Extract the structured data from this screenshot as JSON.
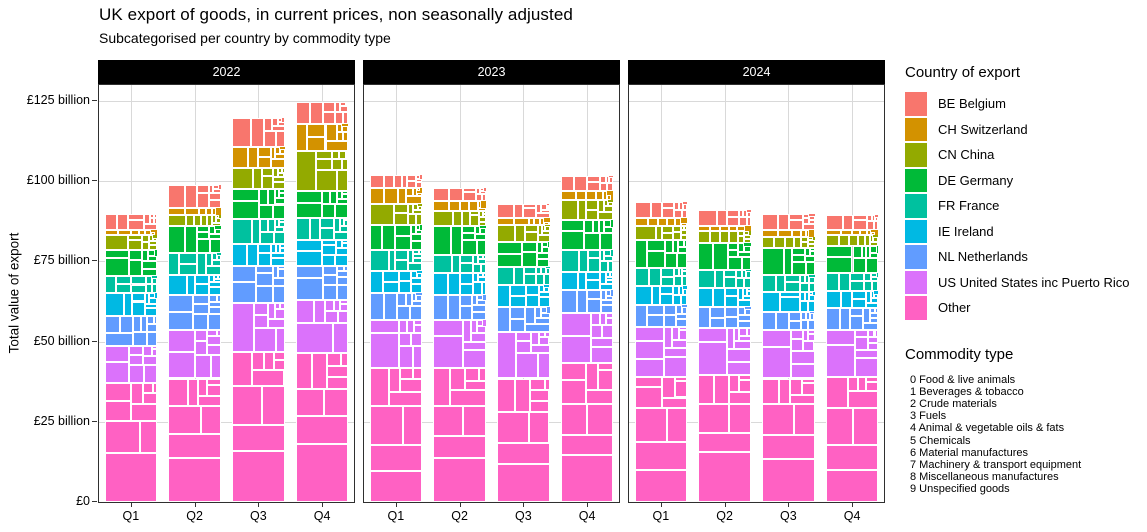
{
  "title": "UK export of goods, in current prices, non seasonally adjusted",
  "subtitle": "Subcategorised per country by commodity type",
  "facets": [
    "2022",
    "2023",
    "2024"
  ],
  "y_axis": {
    "title": "Total value of export",
    "tick_labels": [
      "£0",
      "£25 billion",
      "£50 billion",
      "£75 billion",
      "£100 billion",
      "£125 billion"
    ],
    "tick_values": [
      0,
      25,
      50,
      75,
      100,
      125
    ]
  },
  "x_axis": {
    "labels": [
      "Q1",
      "Q2",
      "Q3",
      "Q4"
    ]
  },
  "legend_country": {
    "title": "Country of export",
    "items": [
      {
        "label": "BE Belgium",
        "color": "#F8766D"
      },
      {
        "label": "CH Switzerland",
        "color": "#D39200"
      },
      {
        "label": "CN China",
        "color": "#93AA00"
      },
      {
        "label": "DE Germany",
        "color": "#00BA38"
      },
      {
        "label": "FR France",
        "color": "#00C19F"
      },
      {
        "label": "IE Ireland",
        "color": "#00B9E3"
      },
      {
        "label": "NL Netherlands",
        "color": "#619CFF"
      },
      {
        "label": "US United States inc Puerto Rico",
        "color": "#DB72FB"
      },
      {
        "label": "Other",
        "color": "#FF61C3"
      }
    ]
  },
  "legend_commodity": {
    "title": "Commodity type",
    "items": [
      "0 Food & live animals",
      "1 Beverages & tobacco",
      "2 Crude materials",
      "3 Fuels",
      "4 Animal & vegetable oils & fats",
      "5 Chemicals",
      "6 Material manufactures",
      "7 Machinery & transport equipment",
      "8 Miscellaneous manufactures",
      "9 Unspecified goods"
    ]
  },
  "chart_data": {
    "type": "bar",
    "stacked": true,
    "mosaic": true,
    "title": "UK export of goods, in current prices, non seasonally adjusted",
    "xlabel": "",
    "ylabel": "Total value of export",
    "ylim": [
      0,
      130
    ],
    "unit": "GBP billion",
    "grid": true,
    "legend_position": "right",
    "categories": [
      "Q1",
      "Q2",
      "Q3",
      "Q4"
    ],
    "stack_order_bottom_to_top": [
      "Other",
      "US United States inc Puerto Rico",
      "NL Netherlands",
      "IE Ireland",
      "FR France",
      "DE Germany",
      "CN China",
      "CH Switzerland",
      "BE Belgium"
    ],
    "facets": [
      {
        "year": "2022",
        "series": [
          {
            "name": "BE Belgium",
            "values": [
              5.2,
              7.1,
              9.2,
              7.1
            ]
          },
          {
            "name": "CH Switzerland",
            "values": [
              1.5,
              2.1,
              6.6,
              8.3
            ]
          },
          {
            "name": "CN China",
            "values": [
              4.5,
              3.6,
              6.5,
              12.5
            ]
          },
          {
            "name": "DE Germany",
            "values": [
              8.3,
              8.3,
              9.4,
              8.3
            ]
          },
          {
            "name": "FR France",
            "values": [
              5.2,
              6.8,
              7.8,
              6.8
            ]
          },
          {
            "name": "IE Ireland",
            "values": [
              7.3,
              6.3,
              6.8,
              8.3
            ]
          },
          {
            "name": "NL Netherlands",
            "values": [
              9.4,
              10.9,
              11.5,
              10.4
            ]
          },
          {
            "name": "US United States inc Puerto Rico",
            "values": [
              11.5,
              15.1,
              15.1,
              16.7
            ]
          },
          {
            "name": "Other",
            "values": [
              37.0,
              38.5,
              46.9,
              46.4
            ]
          }
        ]
      },
      {
        "year": "2023",
        "series": [
          {
            "name": "BE Belgium",
            "values": [
              4.0,
              4.2,
              4.5,
              4.7
            ]
          },
          {
            "name": "CH Switzerland",
            "values": [
              5.2,
              3.1,
              2.1,
              2.6
            ]
          },
          {
            "name": "CN China",
            "values": [
              6.3,
              4.7,
              5.2,
              6.3
            ]
          },
          {
            "name": "DE Germany",
            "values": [
              7.8,
              8.9,
              7.8,
              9.4
            ]
          },
          {
            "name": "FR France",
            "values": [
              6.8,
              5.7,
              5.7,
              6.8
            ]
          },
          {
            "name": "IE Ireland",
            "values": [
              6.8,
              6.8,
              6.8,
              5.7
            ]
          },
          {
            "name": "NL Netherlands",
            "values": [
              8.3,
              7.8,
              7.8,
              7.3
            ]
          },
          {
            "name": "US United States inc Puerto Rico",
            "values": [
              15.1,
              15.1,
              14.6,
              15.6
            ]
          },
          {
            "name": "Other",
            "values": [
              41.7,
              41.7,
              38.5,
              43.2
            ]
          }
        ]
      },
      {
        "year": "2024",
        "series": [
          {
            "name": "BE Belgium",
            "values": [
              4.9,
              5.0,
              4.9,
              4.7
            ]
          },
          {
            "name": "CH Switzerland",
            "values": [
              2.6,
              1.5,
              2.1,
              1.6
            ]
          },
          {
            "name": "CN China",
            "values": [
              4.2,
              4.0,
              3.6,
              3.6
            ]
          },
          {
            "name": "DE Germany",
            "values": [
              8.9,
              8.3,
              8.3,
              8.3
            ]
          },
          {
            "name": "FR France",
            "values": [
              5.7,
              5.7,
              5.2,
              5.7
            ]
          },
          {
            "name": "IE Ireland",
            "values": [
              5.7,
              5.7,
              6.3,
              5.2
            ]
          },
          {
            "name": "NL Netherlands",
            "values": [
              6.8,
              6.8,
              5.7,
              6.8
            ]
          },
          {
            "name": "US United States inc Puerto Rico",
            "values": [
              15.6,
              14.6,
              15.1,
              14.6
            ]
          },
          {
            "name": "Other",
            "values": [
              39.1,
              39.5,
              38.5,
              39.1
            ]
          }
        ]
      }
    ],
    "commodity_share_estimates_pct": {
      "note": "approximate within-country split by commodity type 0-9 as depicted by sub-rectangles",
      "BE Belgium": [
        6,
        2,
        3,
        8,
        1,
        22,
        14,
        28,
        12,
        4
      ],
      "CH Switzerland": [
        4,
        2,
        2,
        3,
        1,
        24,
        10,
        26,
        14,
        14
      ],
      "CN China": [
        5,
        4,
        4,
        2,
        1,
        14,
        12,
        34,
        16,
        8
      ],
      "DE Germany": [
        7,
        3,
        3,
        6,
        1,
        20,
        13,
        30,
        13,
        4
      ],
      "FR France": [
        9,
        4,
        3,
        7,
        1,
        19,
        13,
        28,
        12,
        4
      ],
      "IE Ireland": [
        10,
        3,
        2,
        6,
        1,
        26,
        12,
        24,
        12,
        4
      ],
      "NL Netherlands": [
        8,
        3,
        3,
        11,
        1,
        20,
        13,
        26,
        11,
        4
      ],
      "US United States inc Puerto Rico": [
        5,
        4,
        2,
        6,
        1,
        22,
        12,
        32,
        12,
        4
      ],
      "Other": [
        7,
        3,
        3,
        8,
        1,
        16,
        13,
        33,
        12,
        4
      ]
    }
  }
}
